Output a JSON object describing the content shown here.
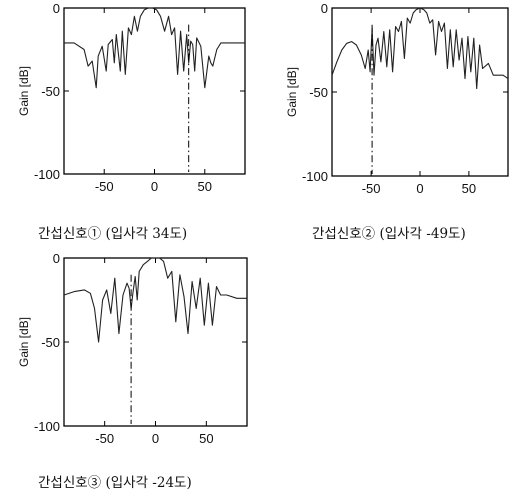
{
  "chart_data": [
    {
      "type": "line",
      "caption": "간섭신호① (입사각 34도)",
      "ylabel": "Gain [dB]",
      "xlim": [
        -90,
        90
      ],
      "ylim": [
        -100,
        0
      ],
      "xticks": [
        "-50",
        "0",
        "50"
      ],
      "yticks": [
        "0",
        "-50",
        "-100"
      ],
      "interference_angle": 34,
      "series": [
        {
          "x": [
            -90,
            -80,
            -70,
            -66,
            -62,
            -58,
            -56,
            -52,
            -48,
            -46,
            -42,
            -40,
            -38,
            -34,
            -32,
            -29,
            -26,
            -23,
            -20,
            -17,
            -14,
            -10,
            -6,
            -2,
            2,
            6,
            10,
            14,
            17,
            20,
            23,
            26,
            29,
            32,
            34,
            36,
            38,
            40,
            42,
            46,
            50,
            54,
            56,
            58,
            62,
            66,
            70,
            80,
            90
          ],
          "y": [
            -21,
            -21,
            -25,
            -35,
            -32,
            -48,
            -29,
            -23,
            -38,
            -22,
            -19,
            -33,
            -16,
            -38,
            -14,
            -40,
            -12,
            -16,
            -5,
            -14,
            -5,
            -1,
            0,
            0,
            -1,
            -5,
            -14,
            -5,
            -16,
            -12,
            -40,
            -14,
            -38,
            -16,
            -33,
            -20,
            -22,
            -38,
            -18,
            -23,
            -48,
            -29,
            -33,
            -35,
            -25,
            -21,
            -21,
            -21,
            -21
          ]
        }
      ]
    },
    {
      "type": "line",
      "caption": "간섭신호② (입사각 -49도)",
      "ylabel": "Gain [dB]",
      "xlim": [
        -90,
        90
      ],
      "ylim": [
        -100,
        0
      ],
      "xticks": [
        "-50",
        "0",
        "50"
      ],
      "yticks": [
        "0",
        "-50",
        "-100"
      ],
      "interference_angle": -49,
      "series": [
        {
          "x": [
            -90,
            -85,
            -80,
            -75,
            -70,
            -65,
            -60,
            -56,
            -53,
            -51,
            -49,
            -47,
            -45,
            -43,
            -40,
            -37,
            -34,
            -31,
            -28,
            -25,
            -22,
            -19,
            -16,
            -13,
            -10,
            -7,
            -4,
            0,
            4,
            7,
            10,
            13,
            16,
            19,
            22,
            25,
            28,
            31,
            34,
            37,
            40,
            43,
            46,
            49,
            52,
            55,
            58,
            61,
            64,
            70,
            75,
            80,
            85,
            90
          ],
          "y": [
            -40,
            -32,
            -25,
            -21,
            -20,
            -22,
            -28,
            -36,
            -25,
            -38,
            -12,
            -40,
            -22,
            -18,
            -32,
            -14,
            -35,
            -13,
            -38,
            -11,
            -14,
            -8,
            -30,
            -6,
            -9,
            -3,
            -1,
            0,
            -1,
            -3,
            -9,
            -7,
            -28,
            -8,
            -14,
            -9,
            -36,
            -13,
            -35,
            -13,
            -31,
            -18,
            -42,
            -17,
            -38,
            -18,
            -48,
            -22,
            -36,
            -33,
            -40,
            -40,
            -40,
            -42
          ]
        }
      ]
    },
    {
      "type": "line",
      "caption": "간섭신호③ (입사각 -24도)",
      "ylabel": "Gain [dB]",
      "xlim": [
        -90,
        90
      ],
      "ylim": [
        -100,
        0
      ],
      "xticks": [
        "-50",
        "0",
        "50"
      ],
      "yticks": [
        "0",
        "-50",
        "-100"
      ],
      "interference_angle": -24,
      "series": [
        {
          "x": [
            -90,
            -80,
            -70,
            -64,
            -60,
            -56,
            -52,
            -48,
            -44,
            -40,
            -36,
            -32,
            -28,
            -26,
            -24,
            -22,
            -20,
            -18,
            -16,
            -12,
            -8,
            -4,
            0,
            4,
            8,
            12,
            16,
            20,
            24,
            28,
            32,
            36,
            40,
            44,
            48,
            52,
            56,
            60,
            64,
            70,
            80,
            90
          ],
          "y": [
            -22,
            -20,
            -19,
            -21,
            -30,
            -50,
            -25,
            -19,
            -33,
            -12,
            -45,
            -22,
            -15,
            -18,
            -30,
            -20,
            -11,
            -25,
            -8,
            -4,
            -2,
            0,
            0,
            0,
            -2,
            -12,
            -8,
            -38,
            -10,
            -23,
            -45,
            -14,
            -30,
            -12,
            -40,
            -15,
            -40,
            -17,
            -22,
            -22,
            -24,
            -24
          ]
        }
      ]
    }
  ]
}
